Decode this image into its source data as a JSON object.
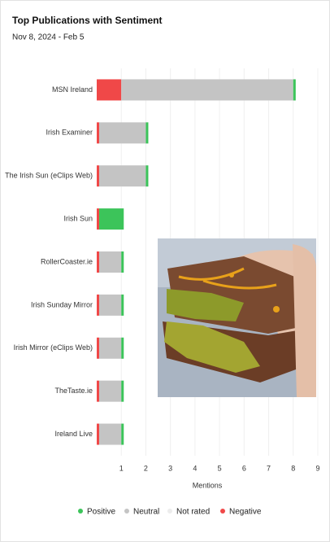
{
  "chart_data": {
    "type": "stacked-bar-horizontal",
    "title": "Top Publications with Sentiment",
    "subtitle": "Nov 8, 2024 - Feb 5",
    "categories": [
      "MSN Ireland",
      "Irish Examiner",
      "The Irish Sun (eClips Web)",
      "Irish Sun",
      "RollerCoaster.ie",
      "Irish Sunday Mirror",
      "Irish Mirror (eClips Web)",
      "TheTaste.ie",
      "Ireland Live"
    ],
    "series": [
      {
        "name": "Negative",
        "color": "#f04848",
        "values": [
          1,
          0.1,
          0.1,
          0.1,
          0.1,
          0.1,
          0.1,
          0.1,
          0.1
        ]
      },
      {
        "name": "Neutral",
        "color": "#c4c4c4",
        "values": [
          7,
          1.9,
          1.9,
          0,
          0.9,
          0.9,
          0.9,
          0.9,
          0.9
        ]
      },
      {
        "name": "Not rated",
        "color": "#ececec",
        "values": [
          0,
          0,
          0,
          0,
          0,
          0,
          0,
          0,
          0
        ]
      },
      {
        "name": "Positive",
        "color": "#3cc45a",
        "values": [
          0.1,
          0.1,
          0.1,
          1,
          0.1,
          0.1,
          0.1,
          0.1,
          0.1
        ]
      }
    ],
    "legend_order": [
      "Positive",
      "Neutral",
      "Not rated",
      "Negative"
    ],
    "xlabel": "Mentions",
    "xlim": [
      0,
      9
    ],
    "xticks": [
      1,
      2,
      3,
      4,
      5,
      6,
      7,
      8,
      9
    ],
    "grid": true
  }
}
